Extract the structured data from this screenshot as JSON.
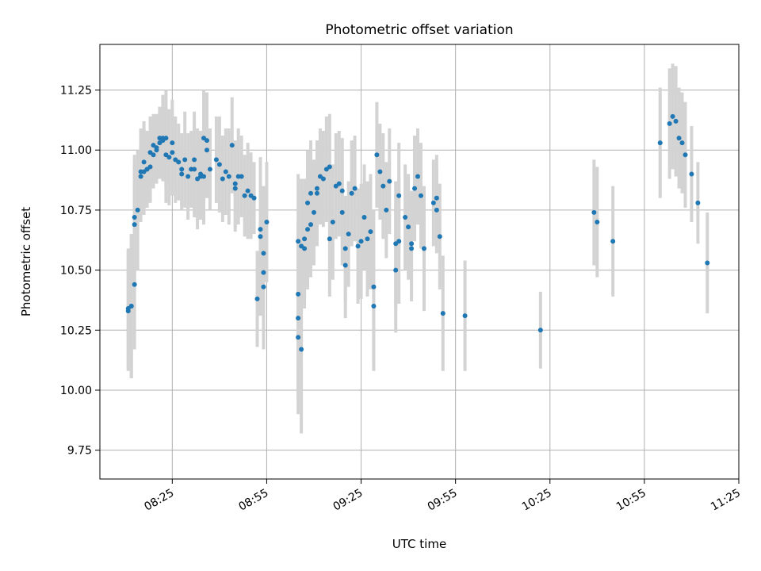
{
  "chart_data": {
    "type": "scatter",
    "title": "Photometric offset variation",
    "xlabel": "UTC time",
    "ylabel": "Photometric offset",
    "x_range": [
      "08:02",
      "11:25"
    ],
    "ylim": [
      9.63,
      11.44
    ],
    "x_ticks": [
      "08:25",
      "08:55",
      "09:25",
      "09:55",
      "10:25",
      "10:55",
      "11:25"
    ],
    "y_ticks": [
      "9.75",
      "10.00",
      "10.25",
      "10.50",
      "10.75",
      "11.00",
      "11.25"
    ],
    "grid": true,
    "errorbar_color": "#d3d3d3",
    "marker_color": "#1f77b4",
    "points": [
      [
        "08:11",
        10.33,
        0.25
      ],
      [
        "08:11",
        10.34,
        0.25
      ],
      [
        "08:12",
        10.35,
        0.3
      ],
      [
        "08:12",
        10.35,
        0.3
      ],
      [
        "08:13",
        10.44,
        0.27
      ],
      [
        "08:13",
        10.69,
        0.26
      ],
      [
        "08:13",
        10.72,
        0.26
      ],
      [
        "08:14",
        10.75,
        0.25
      ],
      [
        "08:15",
        10.89,
        0.19
      ],
      [
        "08:15",
        10.91,
        0.18
      ],
      [
        "08:16",
        10.95,
        0.17
      ],
      [
        "08:16",
        10.91,
        0.18
      ],
      [
        "08:17",
        10.92,
        0.16
      ],
      [
        "08:17",
        10.92,
        0.16
      ],
      [
        "08:18",
        10.93,
        0.15
      ],
      [
        "08:18",
        10.99,
        0.15
      ],
      [
        "08:19",
        10.98,
        0.14
      ],
      [
        "08:19",
        11.02,
        0.13
      ],
      [
        "08:20",
        11.0,
        0.14
      ],
      [
        "08:20",
        11.01,
        0.14
      ],
      [
        "08:21",
        11.03,
        0.15
      ],
      [
        "08:21",
        11.05,
        0.13
      ],
      [
        "08:22",
        11.04,
        0.15
      ],
      [
        "08:22",
        11.05,
        0.18
      ],
      [
        "08:23",
        11.05,
        0.2
      ],
      [
        "08:23",
        10.98,
        0.2
      ],
      [
        "08:24",
        10.97,
        0.2
      ],
      [
        "08:25",
        11.03,
        0.18
      ],
      [
        "08:25",
        10.99,
        0.18
      ],
      [
        "08:26",
        10.96,
        0.18
      ],
      [
        "08:27",
        10.95,
        0.16
      ],
      [
        "08:28",
        10.9,
        0.15
      ],
      [
        "08:28",
        10.92,
        0.15
      ],
      [
        "08:29",
        10.96,
        0.2
      ],
      [
        "08:30",
        10.89,
        0.18
      ],
      [
        "08:31",
        10.92,
        0.16
      ],
      [
        "08:32",
        10.92,
        0.2
      ],
      [
        "08:32",
        10.96,
        0.2
      ],
      [
        "08:33",
        10.88,
        0.21
      ],
      [
        "08:34",
        10.89,
        0.18
      ],
      [
        "08:34",
        10.9,
        0.18
      ],
      [
        "08:35",
        10.89,
        0.2
      ],
      [
        "08:35",
        11.05,
        0.2
      ],
      [
        "08:36",
        11.04,
        0.2
      ],
      [
        "08:36",
        11.0,
        0.2
      ],
      [
        "08:37",
        10.92,
        0.17
      ],
      [
        "08:39",
        10.96,
        0.18
      ],
      [
        "08:40",
        10.94,
        0.2
      ],
      [
        "08:41",
        10.88,
        0.18
      ],
      [
        "08:42",
        10.91,
        0.18
      ],
      [
        "08:43",
        10.89,
        0.2
      ],
      [
        "08:44",
        11.02,
        0.2
      ],
      [
        "08:45",
        10.86,
        0.18
      ],
      [
        "08:45",
        10.84,
        0.18
      ],
      [
        "08:46",
        10.89,
        0.2
      ],
      [
        "08:47",
        10.89,
        0.17
      ],
      [
        "08:48",
        10.81,
        0.17
      ],
      [
        "08:49",
        10.83,
        0.2
      ],
      [
        "08:50",
        10.81,
        0.18
      ],
      [
        "08:51",
        10.8,
        0.15
      ],
      [
        "08:52",
        10.38,
        0.2
      ],
      [
        "08:53",
        10.64,
        0.33
      ],
      [
        "08:53",
        10.67,
        0.3
      ],
      [
        "08:54",
        10.43,
        0.26
      ],
      [
        "08:54",
        10.49,
        0.24
      ],
      [
        "08:54",
        10.57,
        0.28
      ],
      [
        "08:55",
        10.7,
        0.25
      ],
      [
        "09:05",
        10.62,
        0.28
      ],
      [
        "09:05",
        10.4,
        0.3
      ],
      [
        "09:05",
        10.3,
        0.33
      ],
      [
        "09:05",
        10.22,
        0.32
      ],
      [
        "09:06",
        10.17,
        0.35
      ],
      [
        "09:06",
        10.6,
        0.28
      ],
      [
        "09:07",
        10.59,
        0.25
      ],
      [
        "09:07",
        10.63,
        0.25
      ],
      [
        "09:08",
        10.67,
        0.25
      ],
      [
        "09:08",
        10.78,
        0.22
      ],
      [
        "09:09",
        10.82,
        0.22
      ],
      [
        "09:09",
        10.69,
        0.22
      ],
      [
        "09:10",
        10.74,
        0.22
      ],
      [
        "09:11",
        10.82,
        0.22
      ],
      [
        "09:11",
        10.84,
        0.2
      ],
      [
        "09:12",
        10.89,
        0.2
      ],
      [
        "09:13",
        10.88,
        0.2
      ],
      [
        "09:14",
        10.92,
        0.22
      ],
      [
        "09:15",
        10.93,
        0.22
      ],
      [
        "09:15",
        10.63,
        0.24
      ],
      [
        "09:16",
        10.7,
        0.24
      ],
      [
        "09:17",
        10.85,
        0.22
      ],
      [
        "09:18",
        10.86,
        0.22
      ],
      [
        "09:19",
        10.83,
        0.22
      ],
      [
        "09:19",
        10.74,
        0.22
      ],
      [
        "09:20",
        10.52,
        0.22
      ],
      [
        "09:20",
        10.59,
        0.22
      ],
      [
        "09:21",
        10.65,
        0.22
      ],
      [
        "09:22",
        10.82,
        0.22
      ],
      [
        "09:23",
        10.84,
        0.22
      ],
      [
        "09:24",
        10.6,
        0.24
      ],
      [
        "09:25",
        10.62,
        0.24
      ],
      [
        "09:26",
        10.72,
        0.22
      ],
      [
        "09:27",
        10.63,
        0.24
      ],
      [
        "09:28",
        10.66,
        0.24
      ],
      [
        "09:29",
        10.35,
        0.27
      ],
      [
        "09:29",
        10.43,
        0.32
      ],
      [
        "09:30",
        10.98,
        0.22
      ],
      [
        "09:31",
        10.91,
        0.2
      ],
      [
        "09:32",
        10.85,
        0.22
      ],
      [
        "09:33",
        10.75,
        0.2
      ],
      [
        "09:34",
        10.87,
        0.22
      ],
      [
        "09:36",
        10.5,
        0.26
      ],
      [
        "09:37",
        10.62,
        0.26
      ],
      [
        "09:36",
        10.61,
        0.26
      ],
      [
        "09:37",
        10.81,
        0.22
      ],
      [
        "09:39",
        10.72,
        0.22
      ],
      [
        "09:40",
        10.68,
        0.22
      ],
      [
        "09:41",
        10.59,
        0.22
      ],
      [
        "09:41",
        10.61,
        0.22
      ],
      [
        "09:42",
        10.84,
        0.22
      ],
      [
        "09:43",
        10.89,
        0.2
      ],
      [
        "09:44",
        10.81,
        0.22
      ],
      [
        "09:45",
        10.59,
        0.26
      ],
      [
        "09:48",
        10.78,
        0.18
      ],
      [
        "09:49",
        10.8,
        0.18
      ],
      [
        "09:49",
        10.75,
        0.18
      ],
      [
        "09:50",
        10.64,
        0.22
      ],
      [
        "09:51",
        10.32,
        0.24
      ],
      [
        "09:58",
        10.31,
        0.23
      ],
      [
        "10:22",
        10.25,
        0.16
      ],
      [
        "10:39",
        10.74,
        0.22
      ],
      [
        "10:40",
        10.7,
        0.23
      ],
      [
        "10:45",
        10.62,
        0.23
      ],
      [
        "11:00",
        11.03,
        0.23
      ],
      [
        "11:03",
        11.11,
        0.23
      ],
      [
        "11:04",
        11.14,
        0.22
      ],
      [
        "11:05",
        11.12,
        0.23
      ],
      [
        "11:06",
        11.05,
        0.21
      ],
      [
        "11:07",
        11.03,
        0.21
      ],
      [
        "11:08",
        10.98,
        0.22
      ],
      [
        "11:10",
        10.9,
        0.2
      ],
      [
        "11:12",
        10.78,
        0.17
      ],
      [
        "11:15",
        10.53,
        0.21
      ]
    ]
  }
}
